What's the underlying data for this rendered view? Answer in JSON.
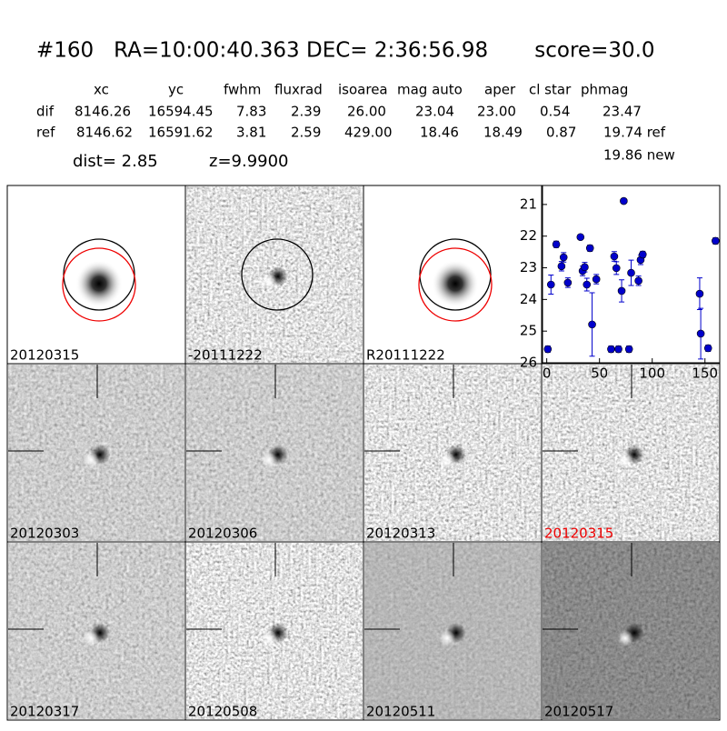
{
  "header": {
    "title": "#160   RA=10:00:40.363 DEC= 2:36:56.98       score=30.0"
  },
  "table": {
    "columns": [
      "xc",
      "yc",
      "fwhm",
      "fluxrad",
      "isoarea",
      "mag auto",
      "aper",
      "cl star",
      "phmag"
    ],
    "rows": [
      {
        "label": "dif",
        "cells": [
          "8146.26",
          "16594.45",
          "7.83",
          "2.39",
          "26.00",
          "23.04",
          "23.00",
          "0.54",
          "23.47"
        ]
      },
      {
        "label": "ref",
        "cells": [
          "8146.62",
          "16591.62",
          "3.81",
          "2.59",
          "429.00",
          "18.46",
          "18.49",
          "0.87",
          "19.74 ref"
        ]
      }
    ],
    "dist": "dist=  2.85",
    "z": "z=9.9900",
    "new": "19.86 new"
  },
  "panels": [
    "20120315",
    "-20111222",
    "R20111222",
    "20120303",
    "20120306",
    "20120313",
    "20120315",
    "20120317",
    "20120508",
    "20120511",
    "20120517"
  ],
  "chart_data": {
    "type": "scatter",
    "color": "#0000cc",
    "x": [
      1,
      4,
      9,
      14,
      16,
      20,
      32,
      34,
      36,
      38,
      41,
      43,
      47,
      61,
      64,
      66,
      68,
      71,
      73,
      78,
      80,
      87,
      89,
      91,
      145,
      146,
      153,
      160
    ],
    "values": [
      25.57,
      23.53,
      22.26,
      22.95,
      22.67,
      23.47,
      22.03,
      23.1,
      22.98,
      23.53,
      22.38,
      24.79,
      23.36,
      25.57,
      22.64,
      23.01,
      25.57,
      23.73,
      20.89,
      25.57,
      23.16,
      23.41,
      22.75,
      22.58,
      23.82,
      25.08,
      25.54,
      22.15
    ],
    "errors": [
      0.1,
      0.3,
      0.1,
      0.15,
      0.15,
      0.15,
      0.05,
      0.15,
      0.15,
      0.2,
      0.1,
      1.0,
      0.15,
      0.1,
      0.15,
      0.2,
      0.1,
      0.35,
      0.05,
      0.1,
      0.4,
      0.15,
      0.15,
      0.1,
      0.5,
      0.8,
      0.1,
      0.1
    ],
    "xlim": [
      -4,
      164
    ],
    "ylim": [
      26,
      20.4
    ],
    "xticks": [
      0,
      50,
      100,
      150
    ],
    "yticks": [
      21,
      22,
      23,
      24,
      25,
      26
    ]
  }
}
